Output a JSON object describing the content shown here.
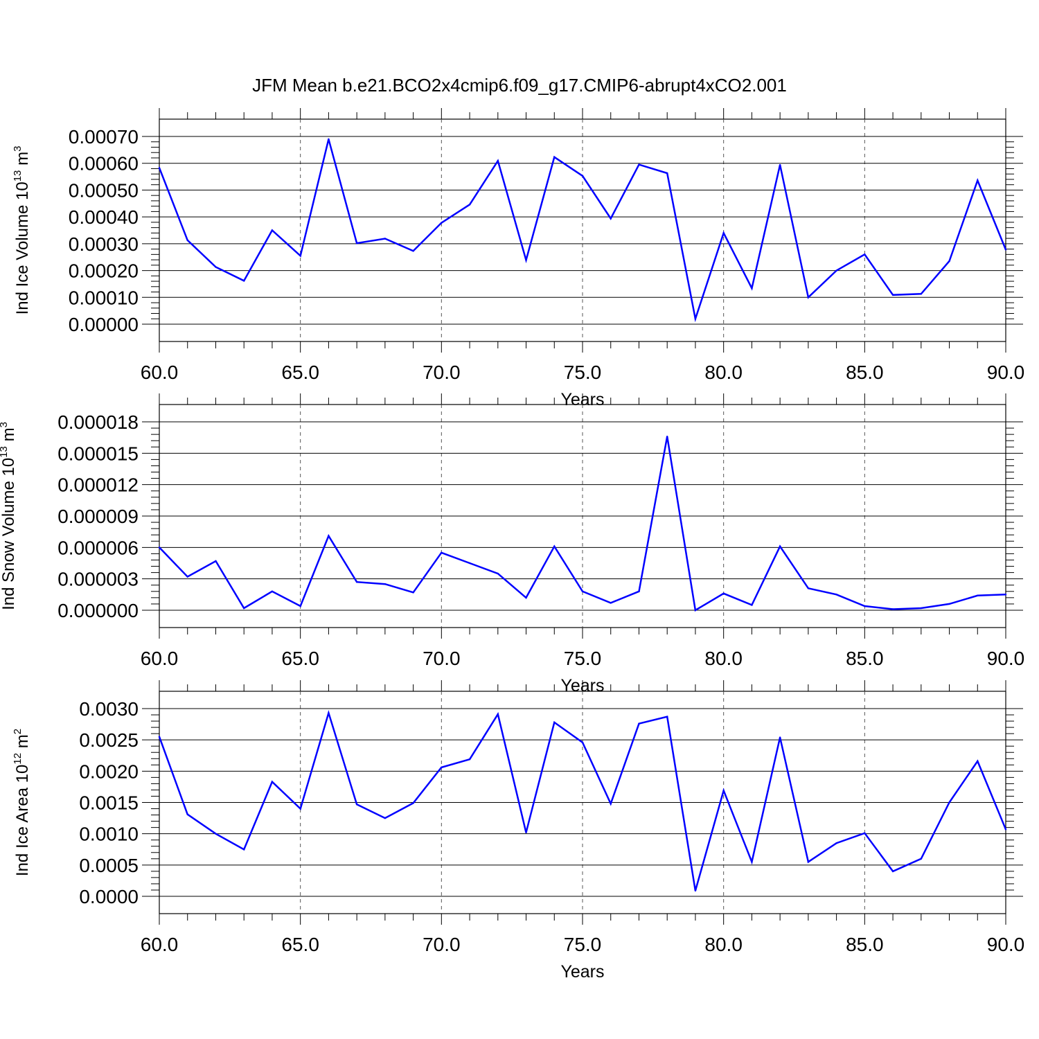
{
  "title": "JFM Mean b.e21.BCO2x4cmip6.f09_g17.CMIP6-abrupt4xCO2.001",
  "colors": {
    "line": "#0000ff",
    "axis": "#000000",
    "grid": "#555555"
  },
  "chart_data": [
    {
      "type": "line",
      "ylabel": "Ind Ice Volume 10",
      "ylabel_sup": "13",
      "ylabel_unit": "m",
      "ylabel_unit_sup": "3",
      "xlabel": "Years",
      "xlim": [
        60,
        90
      ],
      "ylim": [
        0,
        0.0007
      ],
      "yticks": [
        0,
        0.0001,
        0.0002,
        0.0003,
        0.0004,
        0.0005,
        0.0006,
        0.0007
      ],
      "ytick_labels": [
        "0.00000",
        "0.00010",
        "0.00020",
        "0.00030",
        "0.00040",
        "0.00050",
        "0.00060",
        "0.00070"
      ],
      "xticks": [
        60,
        65,
        70,
        75,
        80,
        85,
        90
      ],
      "xtick_labels": [
        "60.0",
        "65.0",
        "70.0",
        "75.0",
        "80.0",
        "85.0",
        "90.0"
      ],
      "grid": "dashed vertical at major x ticks",
      "x": [
        60,
        61,
        62,
        63,
        64,
        65,
        66,
        67,
        68,
        69,
        70,
        71,
        72,
        73,
        74,
        75,
        76,
        77,
        78,
        79,
        80,
        81,
        82,
        83,
        84,
        85,
        86,
        87,
        88,
        89,
        90
      ],
      "values": [
        0.000583,
        0.000313,
        0.000213,
        0.000162,
        0.00035,
        0.000255,
        0.00069,
        0.000302,
        0.000319,
        0.000273,
        0.000378,
        0.000446,
        0.000609,
        0.000239,
        0.000623,
        0.000553,
        0.000394,
        0.000595,
        0.000563,
        2e-05,
        0.00034,
        0.000134,
        0.000594,
        0.0001,
        0.0002,
        0.00026,
        0.000109,
        0.000113,
        0.000235,
        0.000536,
        0.000278
      ]
    },
    {
      "type": "line",
      "ylabel": "Ind Snow Volume 10",
      "ylabel_sup": "13",
      "ylabel_unit": "m",
      "ylabel_unit_sup": "3",
      "xlabel": "Years",
      "xlim": [
        60,
        90
      ],
      "ylim": [
        0,
        1.8e-05
      ],
      "yticks": [
        0,
        3e-06,
        6e-06,
        9e-06,
        1.2e-05,
        1.5e-05,
        1.8e-05
      ],
      "ytick_labels": [
        "0.000000",
        "0.000003",
        "0.000006",
        "0.000009",
        "0.000012",
        "0.000015",
        "0.000018"
      ],
      "xticks": [
        60,
        65,
        70,
        75,
        80,
        85,
        90
      ],
      "xtick_labels": [
        "60.0",
        "65.0",
        "70.0",
        "75.0",
        "80.0",
        "85.0",
        "90.0"
      ],
      "grid": "dashed vertical at major x ticks",
      "x": [
        60,
        61,
        62,
        63,
        64,
        65,
        66,
        67,
        68,
        69,
        70,
        71,
        72,
        73,
        74,
        75,
        76,
        77,
        78,
        79,
        80,
        81,
        82,
        83,
        84,
        85,
        86,
        87,
        88,
        89,
        90
      ],
      "values": [
        6e-06,
        3.2e-06,
        4.7e-06,
        2e-07,
        1.8e-06,
        4e-07,
        7.1e-06,
        2.7e-06,
        2.5e-06,
        1.7e-06,
        5.5e-06,
        4.5e-06,
        3.5e-06,
        1.2e-06,
        6.1e-06,
        1.8e-06,
        7e-07,
        1.8e-06,
        1.66e-05,
        0.0,
        1.6e-06,
        5e-07,
        6.1e-06,
        2.1e-06,
        1.5e-06,
        4e-07,
        1e-07,
        2e-07,
        6e-07,
        1.4e-06,
        1.5e-06
      ]
    },
    {
      "type": "line",
      "ylabel": "Ind Ice Area 10",
      "ylabel_sup": "12",
      "ylabel_unit": "m",
      "ylabel_unit_sup": "2",
      "xlabel": "Years",
      "xlim": [
        60,
        90
      ],
      "ylim": [
        0,
        0.003
      ],
      "yticks": [
        0,
        0.0005,
        0.001,
        0.0015,
        0.002,
        0.0025,
        0.003
      ],
      "ytick_labels": [
        "0.0000",
        "0.0005",
        "0.0010",
        "0.0015",
        "0.0020",
        "0.0025",
        "0.0030"
      ],
      "xticks": [
        60,
        65,
        70,
        75,
        80,
        85,
        90
      ],
      "xtick_labels": [
        "60.0",
        "65.0",
        "70.0",
        "75.0",
        "80.0",
        "85.0",
        "90.0"
      ],
      "grid": "dashed vertical at major x ticks",
      "x": [
        60,
        61,
        62,
        63,
        64,
        65,
        66,
        67,
        68,
        69,
        70,
        71,
        72,
        73,
        74,
        75,
        76,
        77,
        78,
        79,
        80,
        81,
        82,
        83,
        84,
        85,
        86,
        87,
        88,
        89,
        90
      ],
      "values": [
        0.00255,
        0.00131,
        0.001,
        0.00075,
        0.00183,
        0.0014,
        0.00293,
        0.00147,
        0.00125,
        0.00149,
        0.00206,
        0.00219,
        0.00291,
        0.00102,
        0.00278,
        0.00246,
        0.00148,
        0.00276,
        0.00287,
        9e-05,
        0.00169,
        0.00055,
        0.00254,
        0.00055,
        0.00085,
        0.00101,
        0.0004,
        0.0006,
        0.0015,
        0.00216,
        0.00107
      ]
    }
  ]
}
